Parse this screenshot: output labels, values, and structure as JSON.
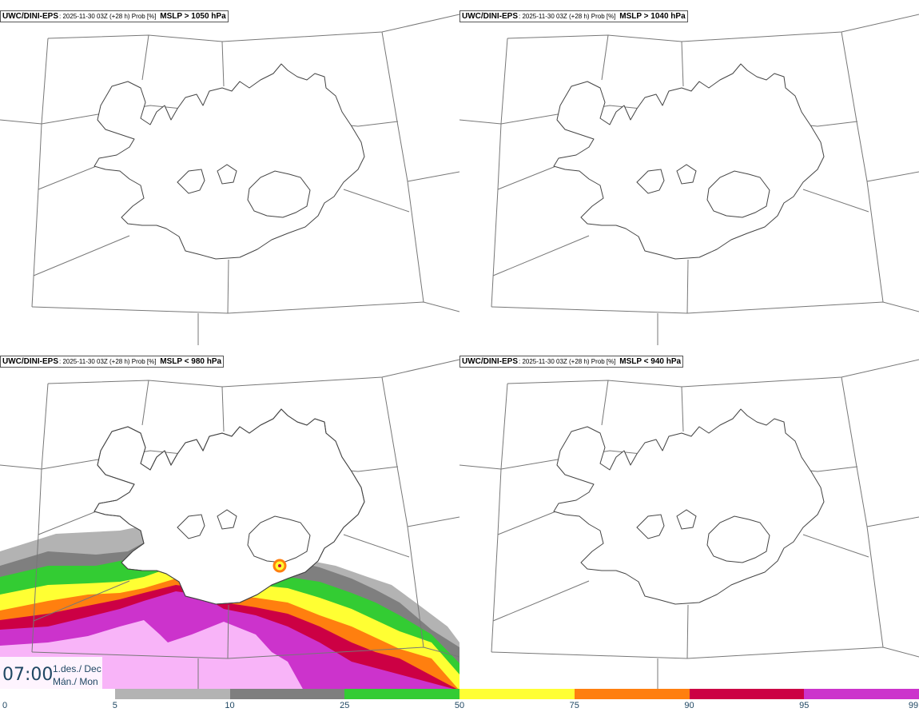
{
  "panels": [
    {
      "model": "UWC/DINI-EPS",
      "subtitle": ": 2025-11-30 03Z (+28 h) Prob [%]",
      "field": "MSLP > 1050 hPa"
    },
    {
      "model": "UWC/DINI-EPS",
      "subtitle": ": 2025-11-30 03Z (+28 h) Prob [%]",
      "field": "MSLP > 1040 hPa"
    },
    {
      "model": "UWC/DINI-EPS",
      "subtitle": ": 2025-11-30 03Z (+28 h) Prob [%]",
      "field": "MSLP < 980 hPa"
    },
    {
      "model": "UWC/DINI-EPS",
      "subtitle": ": 2025-11-30 03Z (+28 h) Prob [%]",
      "field": "MSLP < 940 hPa"
    }
  ],
  "valid_time": {
    "time": "07:00",
    "date_line1": "1.des./ Dec",
    "date_line2": "Mán./ Mon"
  },
  "colorbar": {
    "labels": [
      "0",
      "5",
      "10",
      "25",
      "50",
      "75",
      "90",
      "95",
      "99"
    ],
    "colors": [
      "#ffffff",
      "#b3b3b3",
      "#7f7f7f",
      "#33cc33",
      "#ffff33",
      "#ff7f0f",
      "#cc0044",
      "#cc33cc",
      "#f8b4f8"
    ]
  }
}
